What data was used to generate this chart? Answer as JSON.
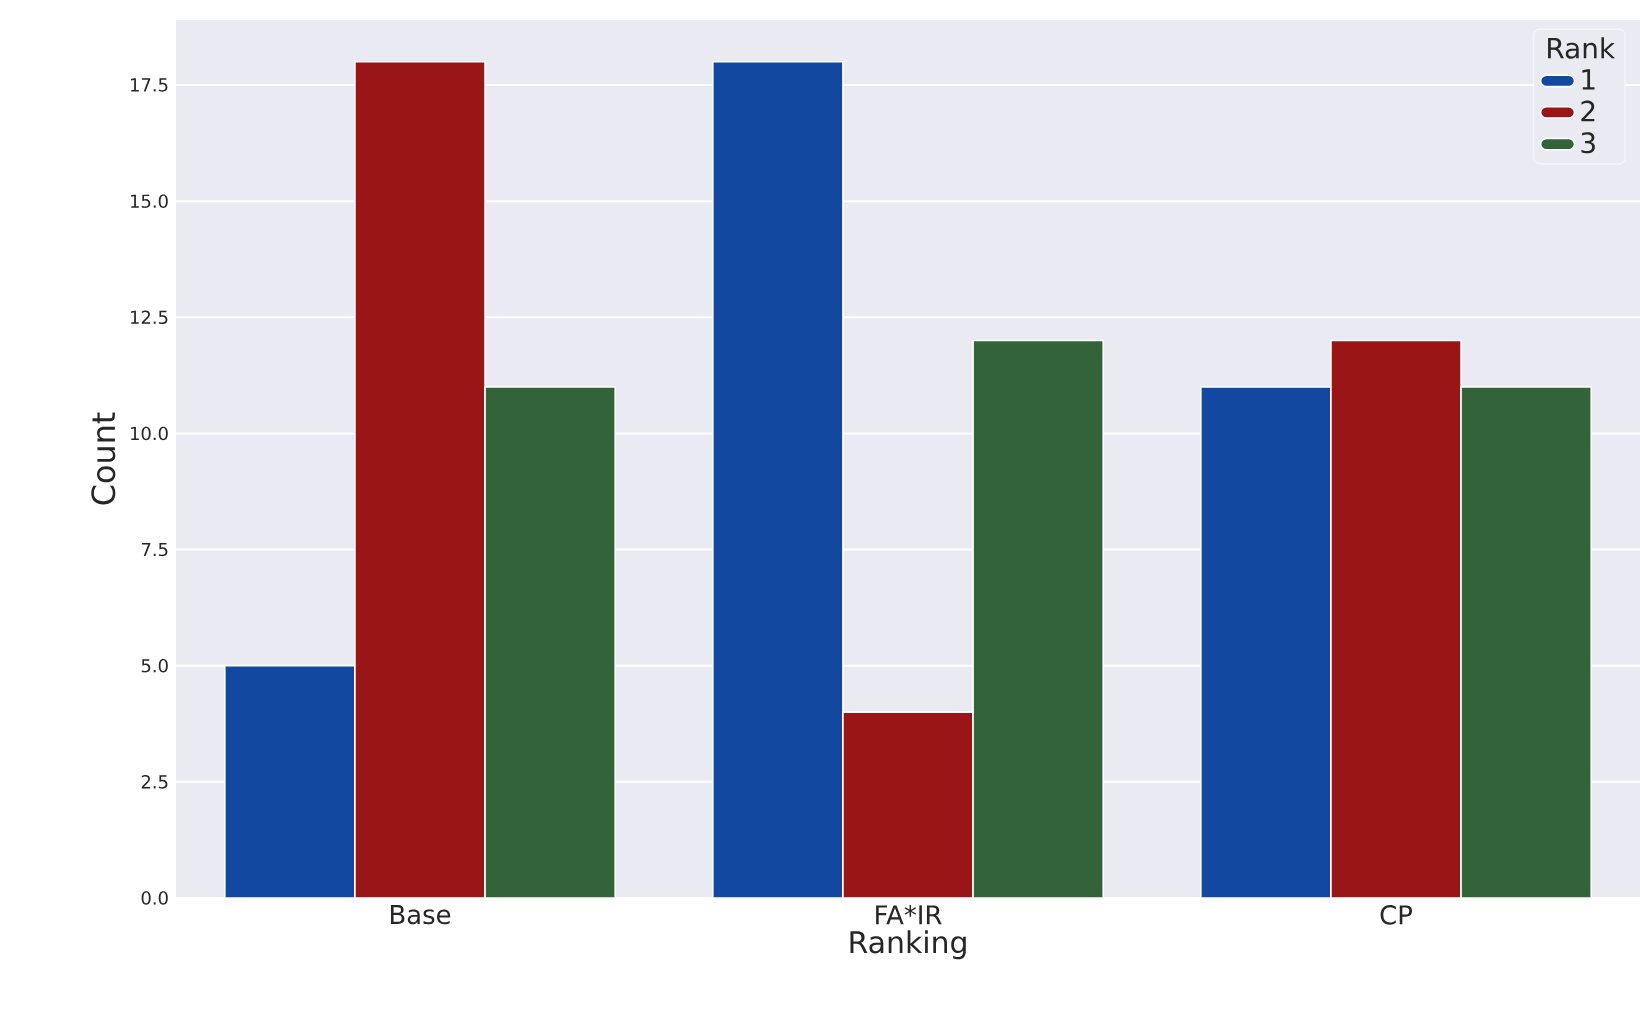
{
  "chart_data": {
    "type": "bar",
    "xlabel": "Ranking",
    "ylabel": "Count",
    "legend_title": "Rank",
    "legend": "top right",
    "grid": "y",
    "categories": [
      "Base",
      "FA*IR",
      "CP"
    ],
    "series": [
      {
        "name": "1",
        "color": "#1348a0",
        "values": [
          5,
          18,
          11
        ]
      },
      {
        "name": "2",
        "color": "#9a1515",
        "values": [
          18,
          4,
          12
        ]
      },
      {
        "name": "3",
        "color": "#336338",
        "values": [
          11,
          12,
          11
        ]
      }
    ],
    "ylim": [
      0,
      18.9
    ],
    "yticks": [
      {
        "value": 0,
        "label": "0.0"
      },
      {
        "value": 2.5,
        "label": "2.5"
      },
      {
        "value": 5,
        "label": "5.0"
      },
      {
        "value": 7.5,
        "label": "7.5"
      },
      {
        "value": 10,
        "label": "10.0"
      },
      {
        "value": 12.5,
        "label": "12.5"
      },
      {
        "value": 15,
        "label": "15.0"
      },
      {
        "value": 17.5,
        "label": "17.5"
      }
    ]
  }
}
